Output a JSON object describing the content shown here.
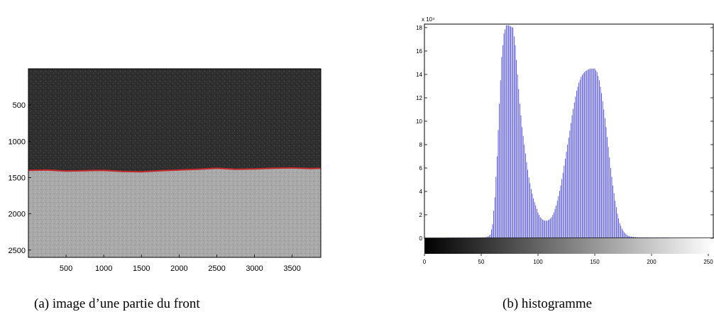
{
  "panels": [
    {
      "caption": "(a) image d’une partie du front"
    },
    {
      "caption": "(b) histogramme"
    }
  ],
  "chart_data": [
    {
      "type": "heatmap",
      "description_visible": "grayscale image: dark upper region, light lower region, red front line",
      "x_ticks": [
        500,
        1000,
        1500,
        2000,
        2500,
        3000,
        3500
      ],
      "y_ticks": [
        500,
        1000,
        1500,
        2000,
        2500
      ],
      "xlim": [
        0,
        3880
      ],
      "ylim": [
        2600,
        0
      ],
      "colors": {
        "dark_region": "#2e2e2e",
        "light_region": "#a7a7a7",
        "front_line": "#c0282a"
      },
      "front_line": {
        "x": [
          0,
          250,
          500,
          750,
          1000,
          1250,
          1500,
          1750,
          2000,
          2250,
          2500,
          2750,
          3000,
          3250,
          3500,
          3750,
          3880
        ],
        "y": [
          1400,
          1395,
          1410,
          1405,
          1400,
          1415,
          1420,
          1405,
          1395,
          1385,
          1370,
          1385,
          1380,
          1370,
          1365,
          1375,
          1370
        ]
      }
    },
    {
      "type": "bar",
      "x": [
        20,
        30,
        40,
        50,
        55,
        58,
        60,
        62,
        64,
        66,
        68,
        70,
        72,
        74,
        76,
        78,
        80,
        82,
        84,
        86,
        88,
        90,
        92,
        94,
        96,
        98,
        100,
        102,
        104,
        106,
        108,
        110,
        112,
        114,
        116,
        118,
        120,
        122,
        124,
        126,
        128,
        130,
        132,
        134,
        136,
        138,
        140,
        142,
        144,
        146,
        148,
        150,
        152,
        154,
        156,
        158,
        160,
        162,
        164,
        166,
        168,
        170,
        172,
        174,
        176,
        178,
        180,
        185,
        190,
        195,
        200,
        205,
        210,
        215
      ],
      "values": [
        0.05,
        0.05,
        0.05,
        0.06,
        0.1,
        0.3,
        1.2,
        3.5,
        7,
        11.5,
        15.5,
        17.5,
        18.2,
        18.2,
        18.1,
        18,
        16.5,
        14,
        11.5,
        9.5,
        8,
        6.5,
        5.2,
        4.2,
        3.4,
        2.8,
        2.2,
        1.8,
        1.6,
        1.5,
        1.5,
        1.6,
        1.8,
        2.2,
        2.8,
        3.6,
        4.5,
        5.6,
        6.8,
        8,
        9.2,
        10.5,
        11.6,
        12.6,
        13.3,
        13.8,
        14.1,
        14.3,
        14.4,
        14.5,
        14.5,
        14.5,
        14.2,
        13.5,
        12.4,
        11,
        9.5,
        7.8,
        6,
        4.5,
        3.2,
        2.1,
        1.3,
        0.8,
        0.5,
        0.3,
        0.18,
        0.1,
        0.06,
        0.06,
        0.05,
        0.05,
        0.05,
        0.05
      ],
      "xlim": [
        0,
        255
      ],
      "ylim": [
        0,
        18.3
      ],
      "x_ticks": [
        "0",
        "50",
        "100",
        "150",
        "200",
        "250"
      ],
      "y_ticks": [
        "0",
        "2",
        "4",
        "6",
        "8",
        "10",
        "12",
        "14",
        "16",
        "18"
      ],
      "y_exponent": "x 10⁴",
      "colors": {
        "bar": "#2a2ad8",
        "baseline": "#000000"
      },
      "colorbar": "grayscale 0 to 255"
    }
  ]
}
